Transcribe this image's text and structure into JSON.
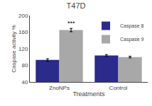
{
  "chart_data": {
    "type": "bar",
    "title": "T47D",
    "xlabel": "Treatments",
    "ylabel": "Caspase activity %",
    "categories": [
      "ZnoNPs",
      "Control"
    ],
    "series": [
      {
        "name": "Caspase 8",
        "color": "#2b2b8c",
        "values": [
          93,
          104
        ],
        "errors": [
          3,
          2
        ]
      },
      {
        "name": "Caspase 9",
        "color": "#a8a8a8",
        "values": [
          165,
          100
        ],
        "errors": [
          4,
          2
        ]
      }
    ],
    "annotations": [
      {
        "text": "***",
        "category": "ZnoNPs",
        "series": "Caspase 9"
      }
    ],
    "ylim": [
      40,
      200
    ],
    "yticks": [
      40,
      80,
      120,
      160,
      200
    ],
    "grid": false,
    "legend": "upper right"
  }
}
